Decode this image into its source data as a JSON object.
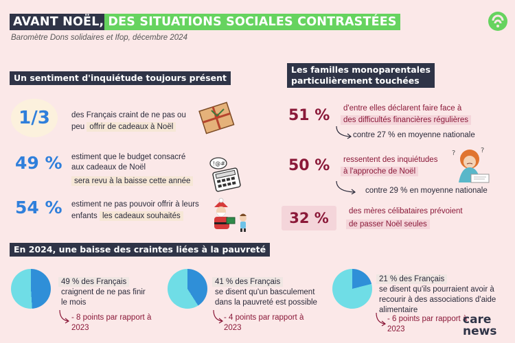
{
  "header": {
    "title_part1": "AVANT NOËL,",
    "title_part2": "DES SITUATIONS SOCIALES CONTRASTÉES",
    "subtitle": "Baromètre Dons solidaires et Ifop, décembre 2024"
  },
  "left_section": {
    "title": "Un sentiment d'inquiétude toujours présent",
    "items": [
      {
        "value": "1/3",
        "line1": "des Français craint de ne pas ou",
        "line2_prefix": "peu",
        "line2_highlight": "offrir de cadeaux à Noël",
        "icon": "gift-icon"
      },
      {
        "value": "49 %",
        "line1": "estiment que le budget consacré",
        "line2": "aux cadeaux de Noël",
        "line3_highlight": "sera revu à la baisse cette année",
        "icon": "calculator-icon"
      },
      {
        "value": "54 %",
        "line1": "estiment ne pas pouvoir offrir à leurs",
        "line2_prefix": "enfants",
        "line2_highlight": "les cadeaux souhaités",
        "icon": "santa-icon"
      }
    ]
  },
  "right_section": {
    "title_line1": "Les familles monoparentales",
    "title_line2": "particulièrement touchées",
    "items": [
      {
        "value": "51 %",
        "line1": "d'entre elles déclarent faire face à",
        "line2": "des difficultés financières régulières",
        "comparison": "contre 27 % en moyenne nationale"
      },
      {
        "value": "50 %",
        "line1": "ressentent des inquiétudes",
        "line2": "à l'approche de Noël",
        "comparison": "contre 29 % en moyenne nationale",
        "icon": "worried-woman-icon"
      },
      {
        "value": "32 %",
        "line1": "des mères célibataires prévoient",
        "line2": "de passer Noël seules"
      }
    ]
  },
  "bottom_section": {
    "title": "En 2024, une baisse des craintes liées à la pauvreté",
    "items": [
      {
        "percent": 49,
        "head": "49 % des Français",
        "line1": "craignent de ne pas finir",
        "line2": "le mois",
        "line3": "",
        "note1": "- 8 points par rapport à",
        "note2": "2023"
      },
      {
        "percent": 41,
        "head": "41 % des Français",
        "line1": "se disent qu'un basculement",
        "line2": "dans la pauvreté est possible",
        "line3": "",
        "note1": "- 4 points par rapport à",
        "note2": "2023"
      },
      {
        "percent": 21,
        "head": "21 % des Français",
        "line1": "se disent qu'ils pourraient avoir à",
        "line2": "recourir à des associations d'aide",
        "line3": "alimentaire",
        "note1": "- 6 points par rapport à",
        "note2": "2023"
      }
    ]
  },
  "brand": {
    "line1": "care",
    "line2": "news"
  },
  "colors": {
    "navy": "#2f3447",
    "green": "#66d35f",
    "blue": "#2f7fdb",
    "burgundy": "#8a1838",
    "pie_light": "#6fdde6",
    "pie_dark": "#2f8fd8",
    "background": "#fbe8e8"
  }
}
